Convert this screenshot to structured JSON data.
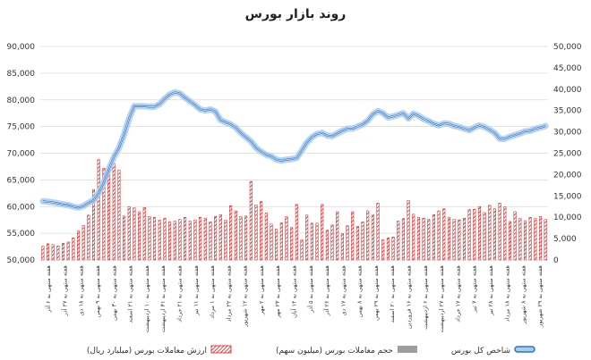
{
  "chart_data": {
    "type": "bar",
    "title": "روند بازار بورس",
    "left_axis": {
      "min": 50000,
      "max": 90000,
      "ticks": [
        "50,000",
        "55,000",
        "60,000",
        "65,000",
        "70,000",
        "75,000",
        "80,000",
        "85,000",
        "90,000"
      ]
    },
    "right_axis": {
      "min": 0,
      "max": 50000,
      "ticks": [
        "0",
        "5,000",
        "10,000",
        "15,000",
        "20,000",
        "25,000",
        "30,000",
        "35,000",
        "40,000",
        "45,000",
        "50,000"
      ]
    },
    "x_labels": [
      "هفته منتهی به ۶ آذر",
      "هفته منتهی به ۲۷ آذر",
      "هفته منتهی به ۱۸ دی",
      "هفته منتهی به ۹ بهمن",
      "هفته منتهی به ۳۰ بهمن",
      "هفته منتهی به ۲۱ اسفند",
      "هفته منتهی به ۱۰ اردیبهشت",
      "هفته منتهی به ۳۱ اردیبهشت",
      "هفته منتهی به ۲۱ خرداد",
      "هفته منتهی به ۱۱ تیر",
      "هفته منتهی به ۱ مرداد",
      "هفته منتهی به ۲۲ مرداد",
      "هفته منتهی به ۱۲ شهریور",
      "هفته منتهی به ۲ مهر",
      "هفته منتهی به ۲۳ مهر",
      "هفته منتهی به ۱۴ آبان",
      "هفته منتهی به ۵ آذر",
      "هفته منتهی به ۲۶ آذر",
      "هفته منتهی به ۱۷ دی",
      "هفته منتهی به ۸ بهمن",
      "هفته منتهی به ۲۹ بهمن",
      "هفته منتهی به ۲۰ اسفند",
      "هفته منتهی به ۱۶ فروردین",
      "هفته منتهی به ۶ اردیبهشت",
      "هفته منتهی به ۲۷ اردیبهشت",
      "هفته منتهی به ۱۷ خرداد",
      "هفته منتهی به ۷ تیر",
      "هفته منتهی به ۲۸ تیر",
      "هفته منتهی به ۱۸ مرداد",
      "هفته منتهی به ۸ شهریور",
      "هفته منتهی به ۲۹ شهریور"
    ],
    "series": [
      {
        "name": "ارزش معاملات بورس (میلیارد ریال)",
        "kind": "bar-hatched",
        "axis": "right",
        "color": "#cc1f1f",
        "values": [
          3200,
          3800,
          3600,
          3300,
          3900,
          4200,
          5200,
          6800,
          8100,
          10500,
          16500,
          23500,
          21500,
          21000,
          22500,
          21000,
          10300,
          12500,
          12200,
          11300,
          12300,
          10200,
          10000,
          9300,
          9800,
          8900,
          9100,
          9500,
          10000,
          9100,
          9400,
          10000,
          9800,
          8900,
          10200,
          10600,
          9300,
          12700,
          11500,
          10200,
          10300,
          18400,
          12900,
          13700,
          11000,
          8400,
          7200,
          8700,
          10200,
          7600,
          13000,
          4700,
          10500,
          8600,
          8600,
          13000,
          7000,
          8200,
          11300,
          6200,
          8000,
          11300,
          7900,
          8900,
          11500,
          10500,
          13300,
          4700,
          5200,
          5400,
          9100,
          9700,
          13900,
          10700,
          10000,
          9800,
          9500,
          10600,
          11500,
          12000,
          10000,
          9500,
          9400,
          9800,
          11800,
          11900,
          12500,
          11100,
          12800,
          12000,
          13300,
          12400,
          9000,
          11300,
          9700,
          9200,
          10000,
          9700,
          10200,
          9500
        ]
      },
      {
        "name": "حجم معاملات بورس (میلیون سهم)",
        "kind": "bar",
        "axis": "right",
        "color": "#9e9e9e",
        "values": []
      },
      {
        "name": "شاخص کل بورس",
        "kind": "line",
        "axis": "left",
        "color": "#2f74c0",
        "values": [
          61000,
          60900,
          60800,
          60600,
          60400,
          60300,
          60000,
          59800,
          60100,
          60700,
          61200,
          62500,
          64500,
          67000,
          69300,
          71000,
          73500,
          76500,
          78800,
          78800,
          78800,
          78700,
          78700,
          79200,
          80200,
          81000,
          81400,
          81200,
          80400,
          79700,
          79000,
          78200,
          78000,
          78200,
          77800,
          76200,
          75800,
          75400,
          74800,
          73800,
          73000,
          72200,
          71000,
          70300,
          69700,
          69400,
          68800,
          68600,
          68800,
          68900,
          69100,
          70500,
          72000,
          73000,
          73600,
          73800,
          73300,
          73200,
          73700,
          74200,
          74600,
          74600,
          75000,
          75400,
          76100,
          77300,
          77900,
          77500,
          76700,
          76900,
          77200,
          77500,
          76500,
          77400,
          77000,
          76400,
          76000,
          75500,
          75200,
          75600,
          75500,
          75100,
          74900,
          74600,
          74300,
          74800,
          75200,
          74900,
          74400,
          73800,
          72700,
          72700,
          73100,
          73400,
          73700,
          74100,
          74200,
          74600,
          74800,
          75100
        ]
      }
    ],
    "legend_position": "bottom",
    "grid": true
  },
  "legend": [
    {
      "label": "شاخص کل بورس",
      "swatch": "line"
    },
    {
      "label": "حجم معاملات بورس (میلیون سهم)",
      "swatch": "grey"
    },
    {
      "label": "ارزش معاملات بورس (میلیارد ریال)",
      "swatch": "hatched"
    }
  ],
  "colors": {
    "bar_red": "#cc1f1f",
    "bar_grey": "#9e9e9e",
    "line_blue": "#2f74c0",
    "line_glow": "#a9cbee",
    "grid": "#d9d9d9"
  }
}
